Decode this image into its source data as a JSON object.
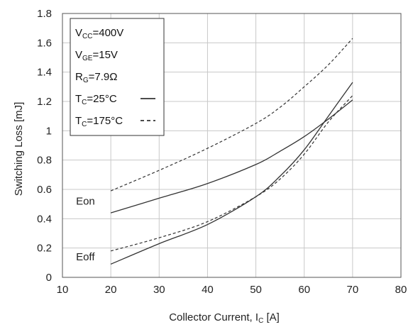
{
  "chart_data": {
    "type": "line",
    "xlabel": {
      "main": "Collector Current, I",
      "sub": "C",
      "unit": " [A]"
    },
    "ylabel": "Switching Loss [mJ]",
    "xlim": [
      10,
      80
    ],
    "ylim": [
      0,
      1.8
    ],
    "xticks": [
      "10",
      "20",
      "30",
      "40",
      "50",
      "60",
      "70",
      "80"
    ],
    "yticks": [
      "0",
      "0.2",
      "0.4",
      "0.6",
      "0.8",
      "1",
      "1.2",
      "1.4",
      "1.6",
      "1.8"
    ],
    "grid": true,
    "legend_placement": "top-left",
    "conditions": [
      {
        "main": "V",
        "sub": "CC",
        "rest": "=400V"
      },
      {
        "main": "V",
        "sub": "GE",
        "rest": "=15V"
      },
      {
        "main": "R",
        "sub": "G",
        "rest": "=7.9Ω"
      }
    ],
    "legend": [
      {
        "main": "T",
        "sub": "C",
        "rest": "=25°C",
        "style": "solid"
      },
      {
        "main": "T",
        "sub": "C",
        "rest": "=175°C",
        "style": "dashed"
      }
    ],
    "curve_labels": [
      {
        "text": "Eon",
        "x": 12.8,
        "y": 0.52
      },
      {
        "text": "Eoff",
        "x": 12.8,
        "y": 0.14
      }
    ],
    "series": [
      {
        "label": "Eon",
        "condition": "TC=25°C",
        "style": "solid",
        "x": [
          20,
          30,
          40,
          50,
          55,
          60,
          65,
          70
        ],
        "y": [
          0.44,
          0.54,
          0.64,
          0.77,
          0.86,
          0.96,
          1.08,
          1.21
        ]
      },
      {
        "label": "Eon",
        "condition": "TC=175°C",
        "style": "dashed",
        "x": [
          20,
          30,
          40,
          50,
          55,
          60,
          65,
          70
        ],
        "y": [
          0.59,
          0.73,
          0.88,
          1.05,
          1.16,
          1.3,
          1.45,
          1.63
        ]
      },
      {
        "label": "Eoff",
        "condition": "TC=25°C",
        "style": "solid",
        "x": [
          20,
          30,
          40,
          50,
          55,
          60,
          65,
          70
        ],
        "y": [
          0.09,
          0.23,
          0.36,
          0.55,
          0.69,
          0.87,
          1.1,
          1.33
        ]
      },
      {
        "label": "Eoff",
        "condition": "TC=175°C",
        "style": "dashed",
        "x": [
          20,
          30,
          40,
          50,
          55,
          60,
          65,
          70
        ],
        "y": [
          0.18,
          0.27,
          0.38,
          0.55,
          0.67,
          0.84,
          1.06,
          1.24
        ]
      }
    ]
  }
}
